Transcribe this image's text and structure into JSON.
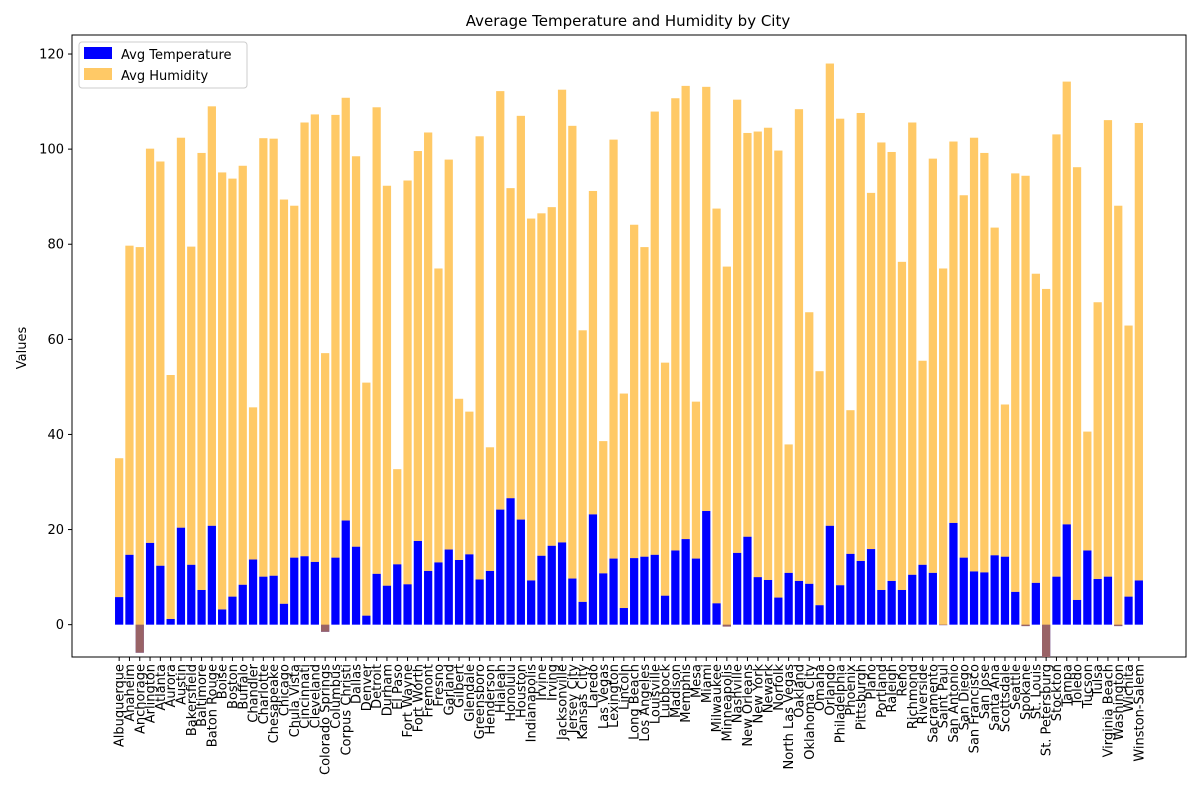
{
  "chart_data": {
    "type": "bar",
    "title": "Average Temperature and Humidity by City",
    "xlabel": "",
    "ylabel": "Values",
    "ylim": [
      -6.8,
      124
    ],
    "yticks": [
      0,
      20,
      40,
      60,
      80,
      100,
      120
    ],
    "legend_position": "top-left",
    "stacked": true,
    "categories": [
      "Albuquerque",
      "Anaheim",
      "Anchorage",
      "Arlington",
      "Atlanta",
      "Aurora",
      "Austin",
      "Bakersfield",
      "Baltimore",
      "Baton Rouge",
      "Boise",
      "Boston",
      "Buffalo",
      "Chandler",
      "Charlotte",
      "Chesapeake",
      "Chicago",
      "Chula Vista",
      "Cincinnati",
      "Cleveland",
      "Colorado Springs",
      "Columbus",
      "Corpus Christi",
      "Dallas",
      "Denver",
      "Detroit",
      "Durham",
      "El Paso",
      "Fort Wayne",
      "Fort Worth",
      "Fremont",
      "Fresno",
      "Garland",
      "Gilbert",
      "Glendale",
      "Greensboro",
      "Henderson",
      "Hialeah",
      "Honolulu",
      "Houston",
      "Indianapolis",
      "Irvine",
      "Irving",
      "Jacksonville",
      "Jersey City",
      "Kansas City",
      "Laredo",
      "Las Vegas",
      "Lexington",
      "Lincoln",
      "Long Beach",
      "Los Angeles",
      "Louisville",
      "Lubbock",
      "Madison",
      "Memphis",
      "Mesa",
      "Miami",
      "Milwaukee",
      "Minneapolis",
      "Nashville",
      "New Orleans",
      "New York",
      "Newark",
      "Norfolk",
      "North Las Vegas",
      "Oakland",
      "Oklahoma City",
      "Omaha",
      "Orlando",
      "Philadelphia",
      "Phoenix",
      "Pittsburgh",
      "Plano",
      "Portland",
      "Raleigh",
      "Reno",
      "Richmond",
      "Riverside",
      "Sacramento",
      "Saint Paul",
      "San Antonio",
      "San Diego",
      "San Francisco",
      "San Jose",
      "Santa Ana",
      "Scottsdale",
      "Seattle",
      "Spokane",
      "St. Louis",
      "St. Petersburg",
      "Stockton",
      "Tampa",
      "Toledo",
      "Tucson",
      "Tulsa",
      "Virginia Beach",
      "Washington",
      "Wichita",
      "Winston-Salem"
    ],
    "series": [
      {
        "name": "Avg Temperature",
        "color": "#0000ff",
        "values": [
          5.8,
          14.7,
          -5.9,
          17.2,
          12.4,
          1.2,
          20.4,
          12.6,
          7.3,
          20.8,
          3.2,
          5.9,
          8.4,
          13.7,
          10.1,
          10.3,
          4.4,
          14.1,
          14.4,
          13.2,
          -1.5,
          14.1,
          21.9,
          16.4,
          1.9,
          10.7,
          8.2,
          12.7,
          8.5,
          17.6,
          11.3,
          13.1,
          15.8,
          13.6,
          14.8,
          9.5,
          11.3,
          24.2,
          26.6,
          22.1,
          9.3,
          14.5,
          16.6,
          17.3,
          9.7,
          4.8,
          23.2,
          10.8,
          13.9,
          3.5,
          14.0,
          14.3,
          14.7,
          6.1,
          15.6,
          18.0,
          13.9,
          23.9,
          4.5,
          -0.4,
          15.1,
          18.5,
          10.0,
          9.4,
          5.7,
          10.9,
          9.2,
          8.6,
          4.1,
          20.8,
          8.3,
          14.9,
          13.4,
          15.9,
          7.3,
          9.2,
          7.3,
          10.5,
          12.6,
          10.9,
          -0.1,
          21.4,
          14.1,
          11.2,
          11.0,
          14.6,
          14.3,
          6.9,
          -0.3,
          8.8,
          -6.8,
          10.1,
          21.1,
          5.2,
          15.6,
          9.6,
          10.1,
          -0.3,
          5.9,
          9.3
        ]
      },
      {
        "name": "Avg Humidity",
        "color": "#ffa500",
        "values": [
          29.2,
          65.0,
          85.3,
          82.9,
          85.0,
          51.3,
          82.0,
          66.9,
          91.9,
          88.2,
          91.9,
          87.9,
          88.1,
          32.0,
          92.2,
          91.9,
          85.0,
          74.0,
          91.2,
          94.1,
          58.6,
          93.1,
          88.9,
          82.1,
          49.0,
          98.1,
          84.1,
          20.0,
          84.9,
          82.0,
          92.2,
          61.8,
          82.0,
          33.9,
          30.0,
          93.2,
          26.0,
          88.0,
          65.2,
          84.9,
          76.1,
          72.0,
          71.2,
          95.2,
          95.2,
          57.1,
          68.0,
          27.8,
          88.1,
          45.1,
          70.1,
          65.1,
          93.2,
          49.0,
          95.1,
          95.3,
          33.0,
          89.2,
          83.0,
          75.7,
          95.3,
          84.9,
          93.7,
          95.1,
          94.0,
          27.0,
          99.2,
          57.1,
          49.2,
          97.2,
          98.1,
          30.2,
          94.2,
          74.9,
          94.1,
          90.2,
          69.0,
          95.1,
          42.9,
          87.1,
          75.0,
          80.2,
          76.2,
          91.2,
          88.2,
          68.9,
          32.0,
          88.0,
          94.7,
          65.0,
          77.4,
          93.0,
          93.1,
          91.0,
          25.0,
          58.2,
          96.0,
          88.4,
          57.0,
          96.2
        ]
      }
    ]
  }
}
